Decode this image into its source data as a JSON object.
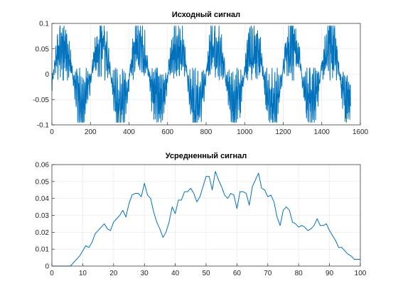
{
  "chart_data": [
    {
      "type": "line",
      "title": "Исходный сигнал",
      "xlabel": "",
      "ylabel": "",
      "xlim": [
        0,
        1600
      ],
      "ylim": [
        -0.1,
        0.1
      ],
      "xticks": [
        0,
        200,
        400,
        600,
        800,
        1000,
        1200,
        1400,
        1600
      ],
      "xtick_labels": [
        "0",
        "200",
        "400",
        "600",
        "800",
        "1000",
        "1200",
        "1400",
        "1600"
      ],
      "yticks": [
        -0.1,
        -0.05,
        0,
        0.05,
        0.1
      ],
      "ytick_labels": [
        "-0.1",
        "-0.05",
        "0",
        "0.05",
        "0.1"
      ],
      "grid": true,
      "color": "#0072BD",
      "signal": {
        "samples": 1550,
        "period": 198,
        "phase_offset": 8,
        "peak_amplitude": 0.095,
        "description_of_shape": "noisy half-wave bursts alternating positive and negative"
      }
    },
    {
      "type": "line",
      "title": "Усредненный сигнал",
      "xlabel": "",
      "ylabel": "",
      "xlim": [
        0,
        100
      ],
      "ylim": [
        0,
        0.06
      ],
      "xticks": [
        0,
        10,
        20,
        30,
        40,
        50,
        60,
        70,
        80,
        90,
        100
      ],
      "xtick_labels": [
        "0",
        "10",
        "20",
        "30",
        "40",
        "50",
        "60",
        "70",
        "80",
        "90",
        "100"
      ],
      "yticks": [
        0,
        0.01,
        0.02,
        0.03,
        0.04,
        0.05,
        0.06
      ],
      "ytick_labels": [
        "0",
        "0.01",
        "0.02",
        "0.03",
        "0.04",
        "0.05",
        "0.06"
      ],
      "grid": true,
      "color": "#0072BD",
      "x": [
        0,
        1,
        2,
        3,
        4,
        5,
        6,
        7,
        8,
        9,
        10,
        11,
        12,
        13,
        14,
        15,
        16,
        17,
        18,
        19,
        20,
        21,
        22,
        23,
        24,
        25,
        26,
        27,
        28,
        29,
        30,
        31,
        32,
        33,
        34,
        35,
        36,
        37,
        38,
        39,
        40,
        41,
        42,
        43,
        44,
        45,
        46,
        47,
        48,
        49,
        50,
        51,
        52,
        53,
        54,
        55,
        56,
        57,
        58,
        59,
        60,
        61,
        62,
        63,
        64,
        65,
        66,
        67,
        68,
        69,
        70,
        71,
        72,
        73,
        74,
        75,
        76,
        77,
        78,
        79,
        80,
        81,
        82,
        83,
        84,
        85,
        86,
        87,
        88,
        89,
        90,
        91,
        92,
        93,
        94,
        95,
        96,
        97,
        98,
        99,
        100
      ],
      "y": [
        0,
        0,
        0,
        0,
        0,
        0,
        0,
        0.002,
        0.004,
        0.006,
        0.009,
        0.012,
        0.011,
        0.014,
        0.019,
        0.021,
        0.023,
        0.025,
        0.022,
        0.021,
        0.026,
        0.028,
        0.03,
        0.033,
        0.029,
        0.037,
        0.042,
        0.043,
        0.043,
        0.041,
        0.049,
        0.042,
        0.04,
        0.032,
        0.026,
        0.022,
        0.017,
        0.02,
        0.026,
        0.035,
        0.031,
        0.039,
        0.039,
        0.044,
        0.044,
        0.046,
        0.043,
        0.038,
        0.041,
        0.047,
        0.053,
        0.053,
        0.045,
        0.056,
        0.051,
        0.047,
        0.042,
        0.04,
        0.043,
        0.042,
        0.034,
        0.044,
        0.044,
        0.043,
        0.036,
        0.047,
        0.051,
        0.055,
        0.046,
        0.045,
        0.041,
        0.042,
        0.038,
        0.029,
        0.024,
        0.033,
        0.035,
        0.033,
        0.026,
        0.025,
        0.023,
        0.024,
        0.023,
        0.021,
        0.022,
        0.024,
        0.028,
        0.024,
        0.024,
        0.025,
        0.021,
        0.018,
        0.015,
        0.011,
        0.011,
        0.009,
        0.007,
        0.006,
        0.004,
        0.004,
        0.004
      ]
    }
  ]
}
